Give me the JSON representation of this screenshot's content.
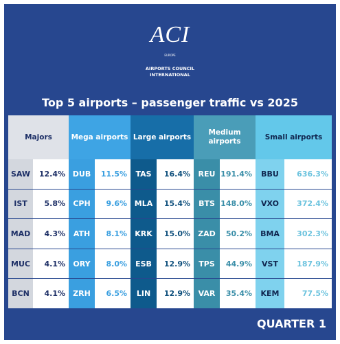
{
  "header": {
    "logo": "ACI",
    "logo_sub": "EUROPE",
    "org_line1": "AIRPORTS COUNCIL",
    "org_line2": "INTERNATIONAL"
  },
  "title": "Top 5 airports – passenger traffic vs 2025",
  "table": {
    "columns": [
      {
        "header": "Majors",
        "rows": [
          [
            "SAW",
            "12.4%"
          ],
          [
            "IST",
            "5.8%"
          ],
          [
            "MAD",
            "4.3%"
          ],
          [
            "MUC",
            "4.1%"
          ],
          [
            "BCN",
            "4.1%"
          ]
        ]
      },
      {
        "header": "Mega airports",
        "rows": [
          [
            "DUB",
            "11.5%"
          ],
          [
            "CPH",
            "9.6%"
          ],
          [
            "ATH",
            "8.1%"
          ],
          [
            "ORY",
            "8.0%"
          ],
          [
            "ZRH",
            "6.5%"
          ]
        ]
      },
      {
        "header": "Large airports",
        "rows": [
          [
            "TAS",
            "16.4%"
          ],
          [
            "MLA",
            "15.4%"
          ],
          [
            "KRK",
            "15.0%"
          ],
          [
            "ESB",
            "12.9%"
          ],
          [
            "LIN",
            "12.9%"
          ]
        ]
      },
      {
        "header": "Medium airports",
        "rows": [
          [
            "REU",
            "191.4%"
          ],
          [
            "BTS",
            "148.0%"
          ],
          [
            "ZAD",
            "50.2%"
          ],
          [
            "TPS",
            "44.9%"
          ],
          [
            "VAR",
            "35.4%"
          ]
        ]
      },
      {
        "header": "Small airports",
        "rows": [
          [
            "BBU",
            "636.3%"
          ],
          [
            "VXO",
            "372.4%"
          ],
          [
            "BMA",
            "302.3%"
          ],
          [
            "VST",
            "187.9%"
          ],
          [
            "KEM",
            "77.5%"
          ]
        ]
      }
    ]
  },
  "footer": "QUARTER 1"
}
